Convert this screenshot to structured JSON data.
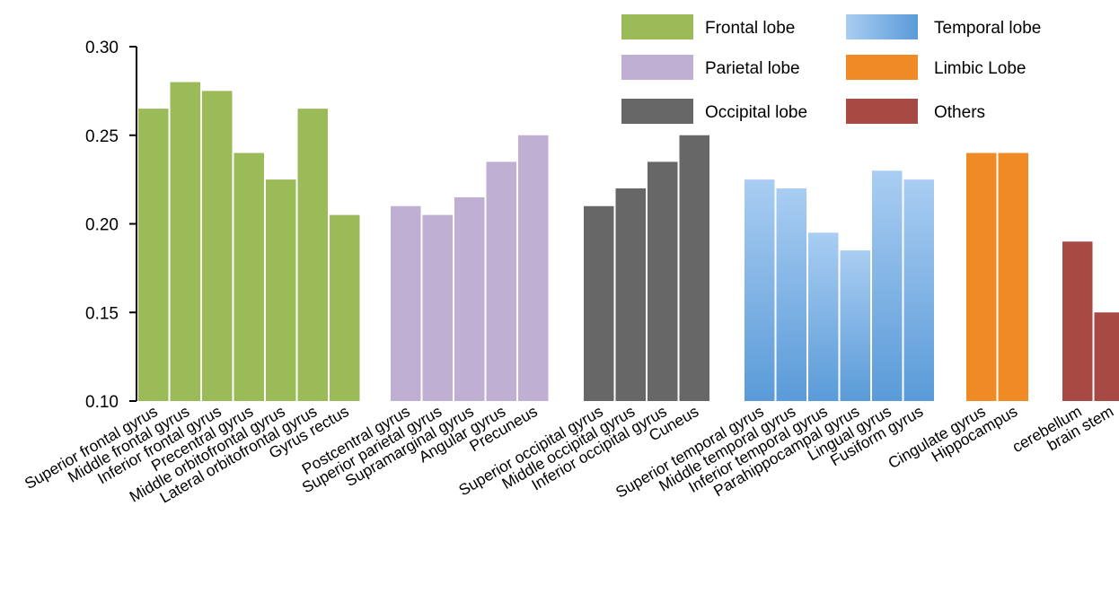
{
  "chart_data": {
    "type": "bar",
    "title": "",
    "xlabel": "",
    "ylabel": "",
    "ylim": [
      0.1,
      0.3
    ],
    "yticks": [
      "0.10",
      "0.15",
      "0.20",
      "0.25",
      "0.30"
    ],
    "grid": false,
    "legend_position": "top-right",
    "groups": [
      {
        "name": "Frontal lobe",
        "color": "#9bbb59",
        "categories": [
          "Superior frontal gyrus",
          "Middle frontal gyrus",
          "Inferior frontal gyrus",
          "Precentral gyrus",
          "Middle orbitofrontal gyrus",
          "Lateral orbitofrontal gyrus",
          "Gyrus rectus"
        ],
        "values": [
          0.265,
          0.28,
          0.275,
          0.24,
          0.225,
          0.265,
          0.205
        ]
      },
      {
        "name": "Parietal lobe",
        "color": "#bfafd3",
        "categories": [
          "Postcentral gyrus",
          "Superior parietal gyrus",
          "Supramarginal gyrus",
          "Angular gyrus",
          "Precuneus"
        ],
        "values": [
          0.21,
          0.205,
          0.215,
          0.235,
          0.25
        ]
      },
      {
        "name": "Occipital lobe",
        "color": "#676767",
        "categories": [
          "Superior occipital gyrus",
          "Middle occipital gyrus",
          "Inferior occipital gyrus",
          "Cuneus"
        ],
        "values": [
          0.21,
          0.22,
          0.235,
          0.25
        ]
      },
      {
        "name": "Temporal lobe",
        "color": "#7fb2e6",
        "categories": [
          "Superior temporal gyrus",
          "Middle temporal gyrus",
          "Inferior temporal gyrus",
          "Parahippocampal gyrus",
          "Lingual gyrus",
          "Fusiform gyrus"
        ],
        "values": [
          0.225,
          0.22,
          0.195,
          0.185,
          0.23,
          0.225
        ]
      },
      {
        "name": "Limbic Lobe",
        "color": "#f08a24",
        "categories": [
          "Cingulate gyrus",
          "Hippocampus"
        ],
        "values": [
          0.24,
          0.24
        ]
      },
      {
        "name": "Others",
        "color": "#a84a44",
        "categories": [
          "cerebellum",
          "brain stem"
        ],
        "values": [
          0.19,
          0.15
        ]
      }
    ],
    "legend": [
      "Frontal lobe",
      "Temporal lobe",
      "Parietal lobe",
      "Limbic Lobe",
      "Occipital lobe",
      "Others"
    ]
  }
}
